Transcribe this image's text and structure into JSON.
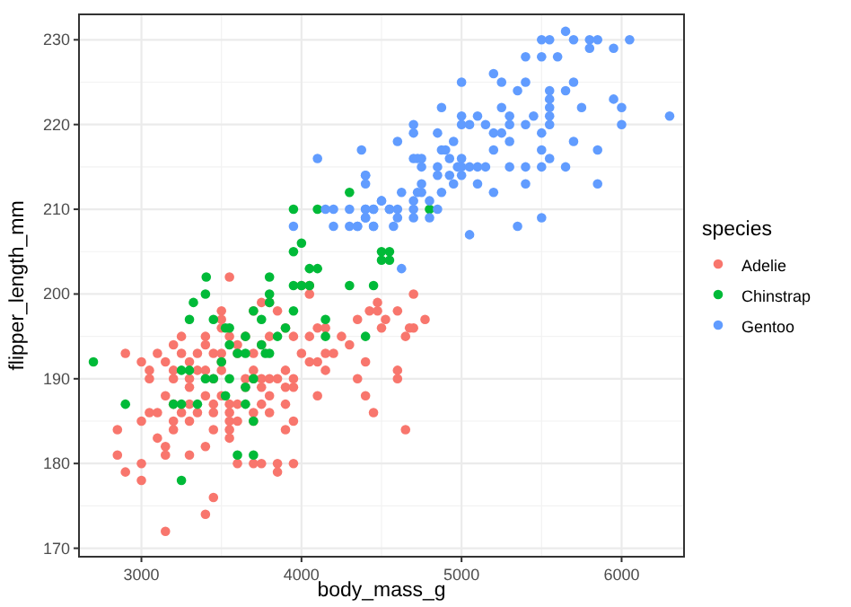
{
  "chart_data": {
    "type": "scatter",
    "xlabel": "body_mass_g",
    "ylabel": "flipper_length_mm",
    "legend_title": "species",
    "legend": "right",
    "grid": true,
    "marker": "circle",
    "xlim": [
      2610,
      6390
    ],
    "ylim": [
      169,
      233
    ],
    "xticks": [
      3000,
      4000,
      5000,
      6000
    ],
    "yticks": [
      170,
      180,
      190,
      200,
      210,
      220,
      230
    ],
    "series": [
      {
        "name": "Adelie",
        "color": "#f8766d",
        "x": [
          3550,
          4000,
          4050,
          4050,
          4700,
          3750,
          3800,
          4475,
          3500,
          3700,
          3850,
          4425,
          4475,
          4600,
          3500,
          4350,
          4525,
          3500,
          3900,
          4100,
          4150,
          4500,
          4700,
          4675,
          3250,
          3400,
          3550,
          3650,
          3800,
          3950,
          4050,
          4250,
          4650,
          4772,
          3200,
          3400,
          3600,
          3750,
          4300,
          2900,
          3100,
          3250,
          3350,
          3450,
          3500,
          3600,
          3700,
          4000,
          4150,
          4200,
          3000,
          3150,
          3300,
          3500,
          4050,
          4100,
          4400,
          3050,
          3200,
          3350,
          3400,
          3500,
          3700,
          3900,
          4150,
          4600,
          3050,
          3200,
          3300,
          3450,
          3650,
          3700,
          3750,
          3800,
          3850,
          3950,
          4350,
          4600,
          3300,
          3650,
          3750,
          3900,
          3950,
          3150,
          3400,
          3500,
          3800,
          4100,
          4400,
          3200,
          3300,
          3450,
          3550,
          3600,
          3750,
          3900,
          3050,
          3100,
          3250,
          3350,
          3450,
          3550,
          3700,
          3800,
          4450,
          3000,
          3200,
          3300,
          3550,
          3600,
          3700,
          3950,
          2850,
          3200,
          3450,
          3550,
          3900,
          4650,
          3100,
          3550,
          3150,
          3400,
          2850,
          3150,
          3300,
          3000,
          3600,
          3700,
          3750,
          3850,
          3950,
          2900,
          3850,
          3000,
          3450,
          3400,
          3150
        ],
        "values": [
          202,
          201,
          201,
          200,
          200,
          199,
          199,
          199,
          198,
          198,
          198,
          198,
          198,
          198,
          197,
          197,
          197,
          196,
          196,
          196,
          196,
          196,
          196,
          196,
          195,
          195,
          195,
          195,
          195,
          195,
          195,
          195,
          195,
          197,
          194,
          194,
          194,
          194,
          194,
          193,
          193,
          193,
          193,
          193,
          193,
          193,
          193,
          193,
          193,
          193,
          192,
          192,
          192,
          192,
          192,
          192,
          192,
          191,
          191,
          191,
          191,
          191,
          191,
          191,
          191,
          191,
          190,
          190,
          190,
          190,
          190,
          190,
          190,
          190,
          190,
          190,
          190,
          190,
          189,
          189,
          189,
          189,
          189,
          188,
          188,
          188,
          188,
          188,
          188,
          187,
          187,
          187,
          187,
          187,
          187,
          187,
          186,
          186,
          186,
          186,
          186,
          186,
          186,
          186,
          186,
          185,
          185,
          185,
          185,
          185,
          185,
          185,
          184,
          184,
          184,
          184,
          184,
          184,
          183,
          183,
          182,
          182,
          181,
          181,
          181,
          180,
          180,
          180,
          180,
          180,
          180,
          179,
          179,
          178,
          176,
          174,
          172
        ]
      },
      {
        "name": "Chinstrap",
        "color": "#00ba38",
        "x": [
          3405,
          3800,
          3950,
          4100,
          3950,
          4000,
          4050,
          4100,
          4300,
          4500,
          4550,
          4300,
          4450,
          4800,
          4500,
          4550,
          2700,
          2900,
          3250,
          3600,
          3700,
          3300,
          3325,
          3400,
          3450,
          3525,
          3550,
          3650,
          3700,
          3750,
          3800,
          3850,
          3900,
          3950,
          3950,
          4000,
          4050,
          3800,
          3250,
          3300,
          3400,
          3450,
          3500,
          3550,
          3650,
          3700,
          3750,
          3775,
          3800,
          3550,
          3600,
          3650,
          3200,
          3250,
          3350,
          3525,
          3650,
          3700,
          4150,
          4150,
          4400
        ],
        "values": [
          202,
          202,
          210,
          210,
          205,
          206,
          203,
          203,
          212,
          204,
          204,
          201,
          201,
          210,
          205,
          205,
          192,
          187,
          178,
          181,
          181,
          197,
          199,
          200,
          197,
          196,
          196,
          195,
          198,
          197,
          199,
          195,
          196,
          198,
          201,
          201,
          201,
          200,
          191,
          191,
          190,
          190,
          192,
          190,
          189,
          190,
          194,
          193,
          193,
          194,
          193,
          193,
          187,
          187,
          187,
          188,
          187,
          185,
          195,
          197,
          195
        ]
      },
      {
        "name": "Gentoo",
        "color": "#619cff",
        "x": [
          5650,
          5500,
          5550,
          5700,
          5800,
          5850,
          6050,
          5800,
          5950,
          5400,
          5500,
          5600,
          5000,
          5200,
          5250,
          5400,
          5700,
          5350,
          5550,
          5650,
          5550,
          5550,
          5750,
          5950,
          6000,
          4875,
          5250,
          5100,
          5000,
          5300,
          5450,
          5550,
          6300,
          4700,
          5000,
          5050,
          5150,
          5300,
          5400,
          5550,
          6000,
          4700,
          4850,
          5200,
          5250,
          5500,
          4600,
          4950,
          5300,
          5700,
          4875,
          4900,
          5200,
          5500,
          5850,
          4700,
          4725,
          4750,
          4925,
          5000,
          5550,
          4750,
          4850,
          4975,
          5000,
          5050,
          5100,
          5150,
          5300,
          5400,
          5500,
          5650,
          4400,
          4850,
          4925,
          5000,
          4750,
          4950,
          5100,
          5400,
          5850,
          4625,
          4725,
          4750,
          4875,
          5200,
          4500,
          4700,
          4800,
          4400,
          4450,
          4550,
          4600,
          4700,
          4850,
          4400,
          4600,
          4700,
          4800,
          4350,
          4450,
          4575,
          5350,
          5500,
          5050,
          4625,
          4100,
          4375,
          4400,
          4400,
          4500,
          4150,
          4200,
          4300,
          4400,
          4450,
          4550,
          3950,
          4200,
          4300,
          4350,
          4450,
          4400
        ],
        "values": [
          231,
          230,
          230,
          230,
          230,
          230,
          230,
          229,
          229,
          228,
          228,
          228,
          225,
          226,
          225,
          225,
          225,
          224,
          224,
          224,
          223,
          222,
          222,
          223,
          222,
          222,
          222,
          221,
          221,
          221,
          221,
          221,
          221,
          220,
          220,
          220,
          220,
          220,
          220,
          220,
          220,
          219,
          219,
          219,
          219,
          219,
          218,
          218,
          218,
          218,
          217,
          217,
          217,
          217,
          217,
          216,
          216,
          216,
          216,
          216,
          216,
          215,
          215,
          215,
          215,
          215,
          215,
          215,
          215,
          215,
          215,
          215,
          214,
          214,
          214,
          214,
          213,
          213,
          213,
          213,
          213,
          212,
          212,
          212,
          212,
          212,
          211,
          211,
          211,
          210,
          210,
          210,
          210,
          210,
          210,
          209,
          209,
          209,
          209,
          208,
          208,
          208,
          208,
          209,
          207,
          203,
          216,
          217,
          214,
          213,
          211,
          210,
          210,
          210,
          210,
          210,
          210,
          208,
          208,
          208,
          208,
          208,
          209
        ]
      }
    ]
  }
}
